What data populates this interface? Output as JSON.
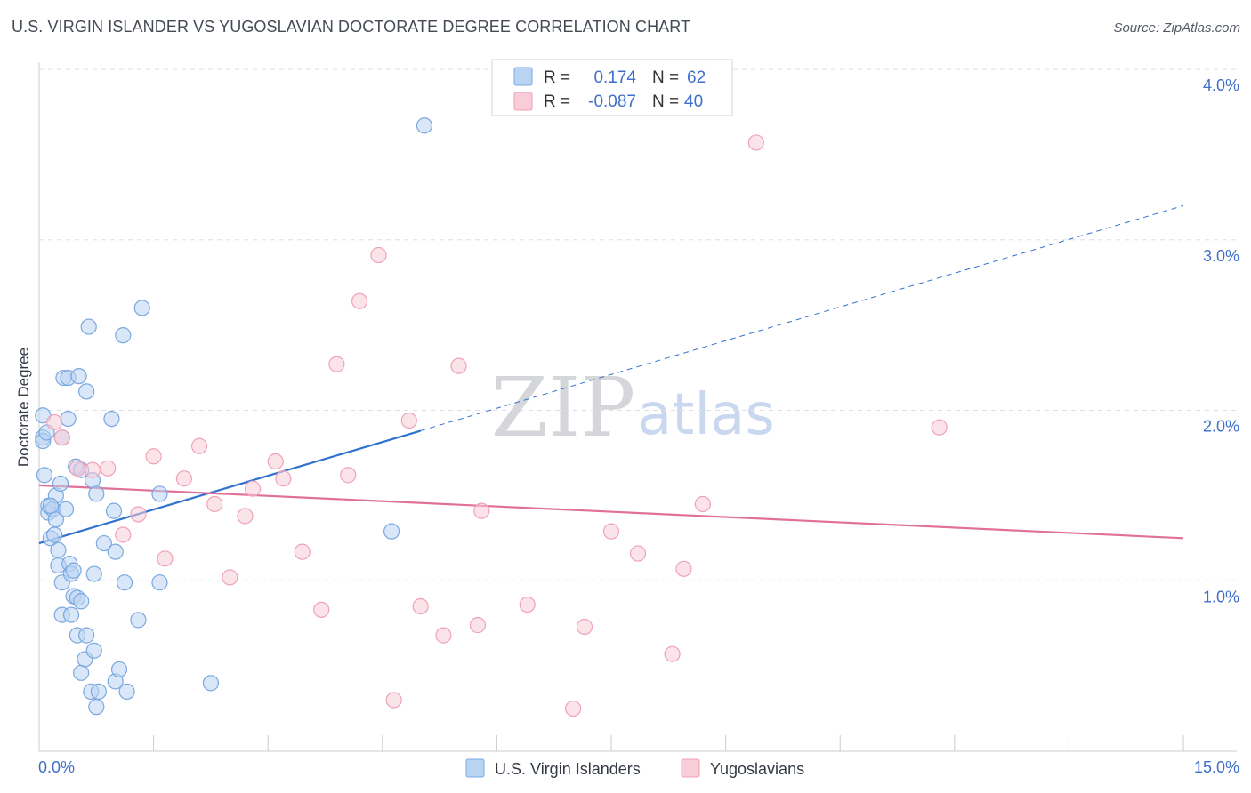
{
  "title": "U.S. VIRGIN ISLANDER VS YUGOSLAVIAN DOCTORATE DEGREE CORRELATION CHART",
  "source": "Source: ZipAtlas.com",
  "watermark": {
    "zip": "ZIP",
    "atlas": "atlas"
  },
  "colors": {
    "blue": "#7aa8e0",
    "blue_fill": "#b9d3f3",
    "blue_line": "#2f72cf",
    "pink": "#f0a2b8",
    "pink_fill": "#f8ccd9",
    "pink_line": "#e0709a",
    "grid": "#dcdee2",
    "axis_text": "#3f6fc9"
  },
  "legend_top": {
    "rows": [
      {
        "r_label": "R =",
        "r_value": "0.174",
        "n_label": "N =",
        "n_value": "62",
        "color": "blue"
      },
      {
        "r_label": "R =",
        "r_value": "-0.087",
        "n_label": "N =",
        "n_value": "40",
        "color": "pink"
      }
    ]
  },
  "legend_bottom": [
    {
      "label": "U.S. Virgin Islanders",
      "color": "blue"
    },
    {
      "label": "Yugoslavians",
      "color": "pink"
    }
  ],
  "chart_data": {
    "type": "scatter",
    "title": "U.S. VIRGIN ISLANDER VS YUGOSLAVIAN DOCTORATE DEGREE CORRELATION CHART",
    "xlabel": "",
    "ylabel": "Doctorate Degree",
    "xlim": [
      0,
      15
    ],
    "ylim": [
      0,
      4.15
    ],
    "x_tick_labels": [
      "0.0%",
      "15.0%"
    ],
    "y_ticks": [
      1.0,
      2.0,
      3.0,
      4.0
    ],
    "y_tick_labels": [
      "1.0%",
      "2.0%",
      "3.0%",
      "4.0%"
    ],
    "grid": "horizontal dashed",
    "series": [
      {
        "name": "U.S. Virgin Islanders",
        "color": "blue",
        "points": [
          [
            0.05,
            1.97
          ],
          [
            0.05,
            1.84
          ],
          [
            0.05,
            1.82
          ],
          [
            0.07,
            1.62
          ],
          [
            0.1,
            1.87
          ],
          [
            0.12,
            1.44
          ],
          [
            0.12,
            1.4
          ],
          [
            0.15,
            1.25
          ],
          [
            0.18,
            1.42
          ],
          [
            0.2,
            1.27
          ],
          [
            0.22,
            1.5
          ],
          [
            0.22,
            1.36
          ],
          [
            0.25,
            1.18
          ],
          [
            0.25,
            1.09
          ],
          [
            0.28,
            1.57
          ],
          [
            0.3,
            1.84
          ],
          [
            0.3,
            0.99
          ],
          [
            0.3,
            0.8
          ],
          [
            0.32,
            2.19
          ],
          [
            0.35,
            1.42
          ],
          [
            0.38,
            1.95
          ],
          [
            0.38,
            2.19
          ],
          [
            0.4,
            1.1
          ],
          [
            0.42,
            1.04
          ],
          [
            0.45,
            1.06
          ],
          [
            0.45,
            0.91
          ],
          [
            0.42,
            0.8
          ],
          [
            0.48,
            1.67
          ],
          [
            0.5,
            0.9
          ],
          [
            0.5,
            0.68
          ],
          [
            0.52,
            2.2
          ],
          [
            0.55,
            0.88
          ],
          [
            0.55,
            0.46
          ],
          [
            0.6,
            0.54
          ],
          [
            0.62,
            2.11
          ],
          [
            0.62,
            0.68
          ],
          [
            0.65,
            2.49
          ],
          [
            0.68,
            0.35
          ],
          [
            0.7,
            1.59
          ],
          [
            0.72,
            1.04
          ],
          [
            0.72,
            0.59
          ],
          [
            0.75,
            1.51
          ],
          [
            0.75,
            0.26
          ],
          [
            0.78,
            0.35
          ],
          [
            0.85,
            1.22
          ],
          [
            0.95,
            1.95
          ],
          [
            0.98,
            1.41
          ],
          [
            1.0,
            1.17
          ],
          [
            1.0,
            0.41
          ],
          [
            1.05,
            0.48
          ],
          [
            1.1,
            2.44
          ],
          [
            1.12,
            0.99
          ],
          [
            1.15,
            0.35
          ],
          [
            1.3,
            0.77
          ],
          [
            1.35,
            2.6
          ],
          [
            1.58,
            1.51
          ],
          [
            1.58,
            0.99
          ],
          [
            2.25,
            0.4
          ],
          [
            4.62,
            1.29
          ],
          [
            5.05,
            3.67
          ],
          [
            0.15,
            1.44
          ],
          [
            0.55,
            1.65
          ]
        ],
        "trend": {
          "x": [
            0.0,
            5.0
          ],
          "y": [
            1.22,
            1.88
          ],
          "dashed_extension": {
            "x": [
              5.0,
              15.0
            ],
            "y": [
              1.88,
              3.2
            ]
          }
        }
      },
      {
        "name": "Yugoslavians",
        "color": "pink",
        "points": [
          [
            0.3,
            1.84
          ],
          [
            0.5,
            1.66
          ],
          [
            0.7,
            1.65
          ],
          [
            0.9,
            1.66
          ],
          [
            1.1,
            1.27
          ],
          [
            1.3,
            1.39
          ],
          [
            1.5,
            1.73
          ],
          [
            1.65,
            1.13
          ],
          [
            1.9,
            1.6
          ],
          [
            2.1,
            1.79
          ],
          [
            2.3,
            1.45
          ],
          [
            2.5,
            1.02
          ],
          [
            2.7,
            1.38
          ],
          [
            2.8,
            1.54
          ],
          [
            3.1,
            1.7
          ],
          [
            3.2,
            1.6
          ],
          [
            3.45,
            1.17
          ],
          [
            3.7,
            0.83
          ],
          [
            3.9,
            2.27
          ],
          [
            4.05,
            1.62
          ],
          [
            4.2,
            2.64
          ],
          [
            4.45,
            2.91
          ],
          [
            4.65,
            0.3
          ],
          [
            4.85,
            1.94
          ],
          [
            5.0,
            0.85
          ],
          [
            5.3,
            0.68
          ],
          [
            5.5,
            2.26
          ],
          [
            5.75,
            0.74
          ],
          [
            5.8,
            1.41
          ],
          [
            6.4,
            0.86
          ],
          [
            7.0,
            0.25
          ],
          [
            7.15,
            0.73
          ],
          [
            7.5,
            1.29
          ],
          [
            7.85,
            1.16
          ],
          [
            8.3,
            0.57
          ],
          [
            8.45,
            1.07
          ],
          [
            8.7,
            1.45
          ],
          [
            9.4,
            3.57
          ],
          [
            11.8,
            1.9
          ],
          [
            0.2,
            1.93
          ]
        ],
        "trend": {
          "x": [
            0.0,
            15.0
          ],
          "y": [
            1.56,
            1.25
          ]
        }
      }
    ]
  }
}
